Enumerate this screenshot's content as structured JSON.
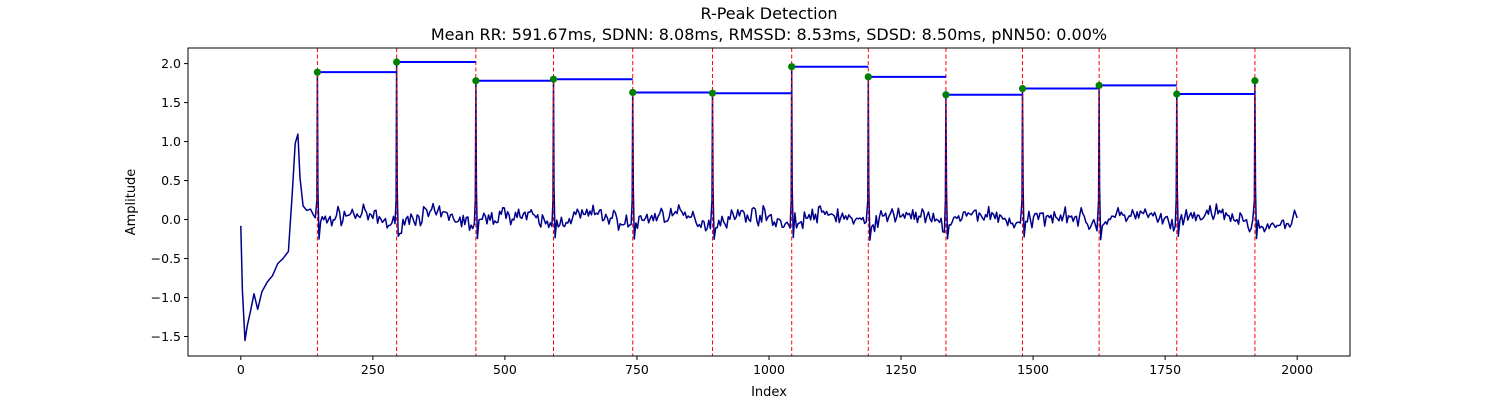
{
  "chart_data": {
    "type": "line",
    "title": "R-Peak Detection",
    "subtitle": "Mean RR: 591.67ms, SDNN: 8.08ms, RMSSD: 8.53ms, SDSD: 8.50ms, pNN50: 0.00%",
    "xlabel": "Index",
    "ylabel": "Amplitude",
    "xlim": [
      -100,
      2100
    ],
    "ylim": [
      -1.75,
      2.2
    ],
    "x_ticks": [
      0,
      250,
      500,
      750,
      1000,
      1250,
      1500,
      1750,
      2000
    ],
    "y_ticks": [
      -1.5,
      -1.0,
      -0.5,
      0.0,
      0.5,
      1.0,
      1.5,
      2.0
    ],
    "y_tick_labels": [
      "−1.5",
      "−1.0",
      "−0.5",
      "0.0",
      "0.5",
      "1.0",
      "1.5",
      "2.0"
    ],
    "grid": false,
    "colors": {
      "signal": "#00008b",
      "peak_lines": "#ff0000",
      "peak_markers": "#008000",
      "rr_intervals": "#0000ff"
    },
    "peaks": {
      "x": [
        145,
        295,
        445,
        592,
        742,
        893,
        1043,
        1188,
        1335,
        1480,
        1625,
        1772,
        1920
      ],
      "y": [
        1.89,
        2.02,
        1.78,
        1.8,
        1.63,
        1.62,
        1.96,
        1.83,
        1.6,
        1.68,
        1.72,
        1.61,
        1.78
      ]
    },
    "signal_baseline": {
      "x": [
        0,
        3,
        8,
        12,
        18,
        25,
        32,
        40,
        50,
        60,
        70,
        80,
        90,
        97,
        103,
        108,
        112,
        118,
        125,
        132,
        138
      ],
      "y": [
        -0.08,
        -0.9,
        -1.55,
        -1.38,
        -1.2,
        -0.95,
        -1.15,
        -0.95,
        -0.8,
        -0.75,
        -0.6,
        -0.5,
        -0.38,
        0.3,
        0.95,
        1.12,
        0.55,
        0.18,
        0.1,
        0.15,
        0.05
      ]
    }
  }
}
